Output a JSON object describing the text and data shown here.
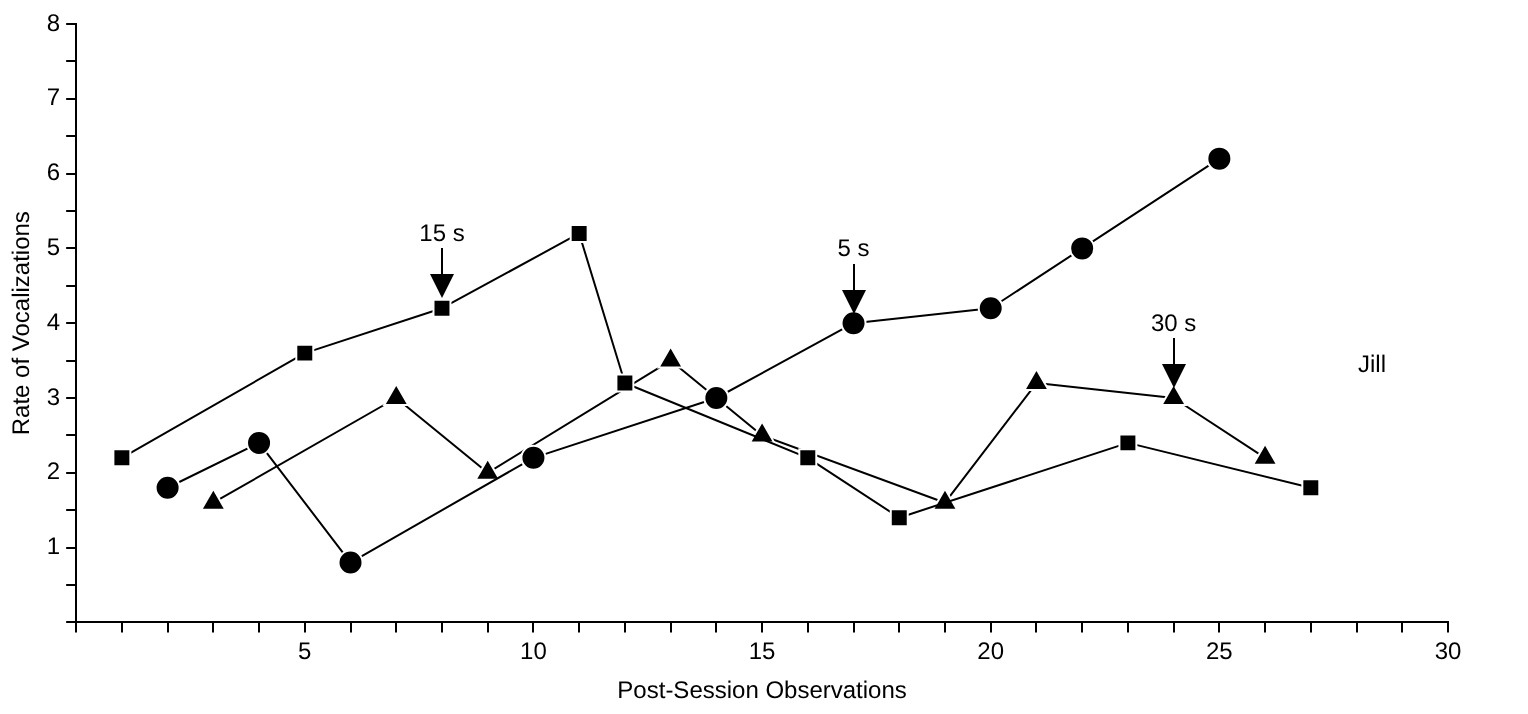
{
  "chart_data": {
    "type": "line",
    "xlabel": "Post-Session Observations",
    "ylabel": "Rate of Vocalizations",
    "series": [
      {
        "color": "#000000",
        "marker": "square",
        "x": [
          1,
          5,
          8,
          11,
          12,
          16,
          18,
          23,
          27
        ],
        "values": [
          2.2,
          3.6,
          4.2,
          5.2,
          3.2,
          2.2,
          1.4,
          2.4,
          1.8
        ]
      },
      {
        "color": "#000000",
        "marker": "circle",
        "x": [
          2,
          4,
          6,
          10,
          14,
          17,
          20,
          22,
          25
        ],
        "values": [
          1.8,
          2.4,
          0.8,
          2.2,
          3.0,
          4.0,
          4.2,
          5.0,
          6.2
        ]
      },
      {
        "color": "#000000",
        "marker": "triangle",
        "x": [
          3,
          7,
          9,
          13,
          15,
          19,
          21,
          24,
          26
        ],
        "values": [
          1.6,
          3.0,
          2.0,
          3.5,
          2.5,
          1.6,
          3.2,
          3.0,
          2.2
        ]
      }
    ],
    "xlim": [
      0,
      30
    ],
    "xticks": [
      {
        "value": 0,
        "label": null
      },
      {
        "value": 1,
        "label": null
      },
      {
        "value": 2,
        "label": null
      },
      {
        "value": 3,
        "label": null
      },
      {
        "value": 4,
        "label": null
      },
      5,
      {
        "value": 6,
        "label": null
      },
      {
        "value": 7,
        "label": null
      },
      {
        "value": 8,
        "label": null
      },
      {
        "value": 9,
        "label": null
      },
      10,
      {
        "value": 11,
        "label": null
      },
      {
        "value": 12,
        "label": null
      },
      {
        "value": 13,
        "label": null
      },
      {
        "value": 14,
        "label": null
      },
      15,
      {
        "value": 16,
        "label": null
      },
      {
        "value": 17,
        "label": null
      },
      {
        "value": 18,
        "label": null
      },
      {
        "value": 19,
        "label": null
      },
      20,
      {
        "value": 21,
        "label": null
      },
      {
        "value": 22,
        "label": null
      },
      {
        "value": 23,
        "label": null
      },
      {
        "value": 24,
        "label": null
      },
      25,
      {
        "value": 26,
        "label": null
      },
      {
        "value": 27,
        "label": null
      },
      {
        "value": 28,
        "label": null
      },
      {
        "value": 29,
        "label": null
      },
      30
    ],
    "ylim": [
      0,
      8
    ],
    "yticks": [
      {
        "value": 0,
        "label": null
      },
      {
        "value": 0.5,
        "label": null
      },
      1,
      {
        "value": 1.5,
        "label": null
      },
      2,
      {
        "value": 2.5,
        "label": null
      },
      3,
      {
        "value": 3.5,
        "label": null
      },
      4,
      {
        "value": 4.5,
        "label": null
      },
      5,
      {
        "value": 5.5,
        "label": null
      },
      6,
      {
        "value": 6.5,
        "label": null
      },
      7,
      {
        "value": 7.5,
        "label": null
      },
      8
    ],
    "annotations": [
      {
        "text": "15 s",
        "x": 8,
        "y": 4.2
      },
      {
        "text": "5 s",
        "x": 17,
        "y": 4.0
      },
      {
        "text": "30 s",
        "x": 24,
        "y": 3.0
      },
      "Jill"
    ],
    "grid": false,
    "legend": false,
    "line_style": "solid"
  }
}
